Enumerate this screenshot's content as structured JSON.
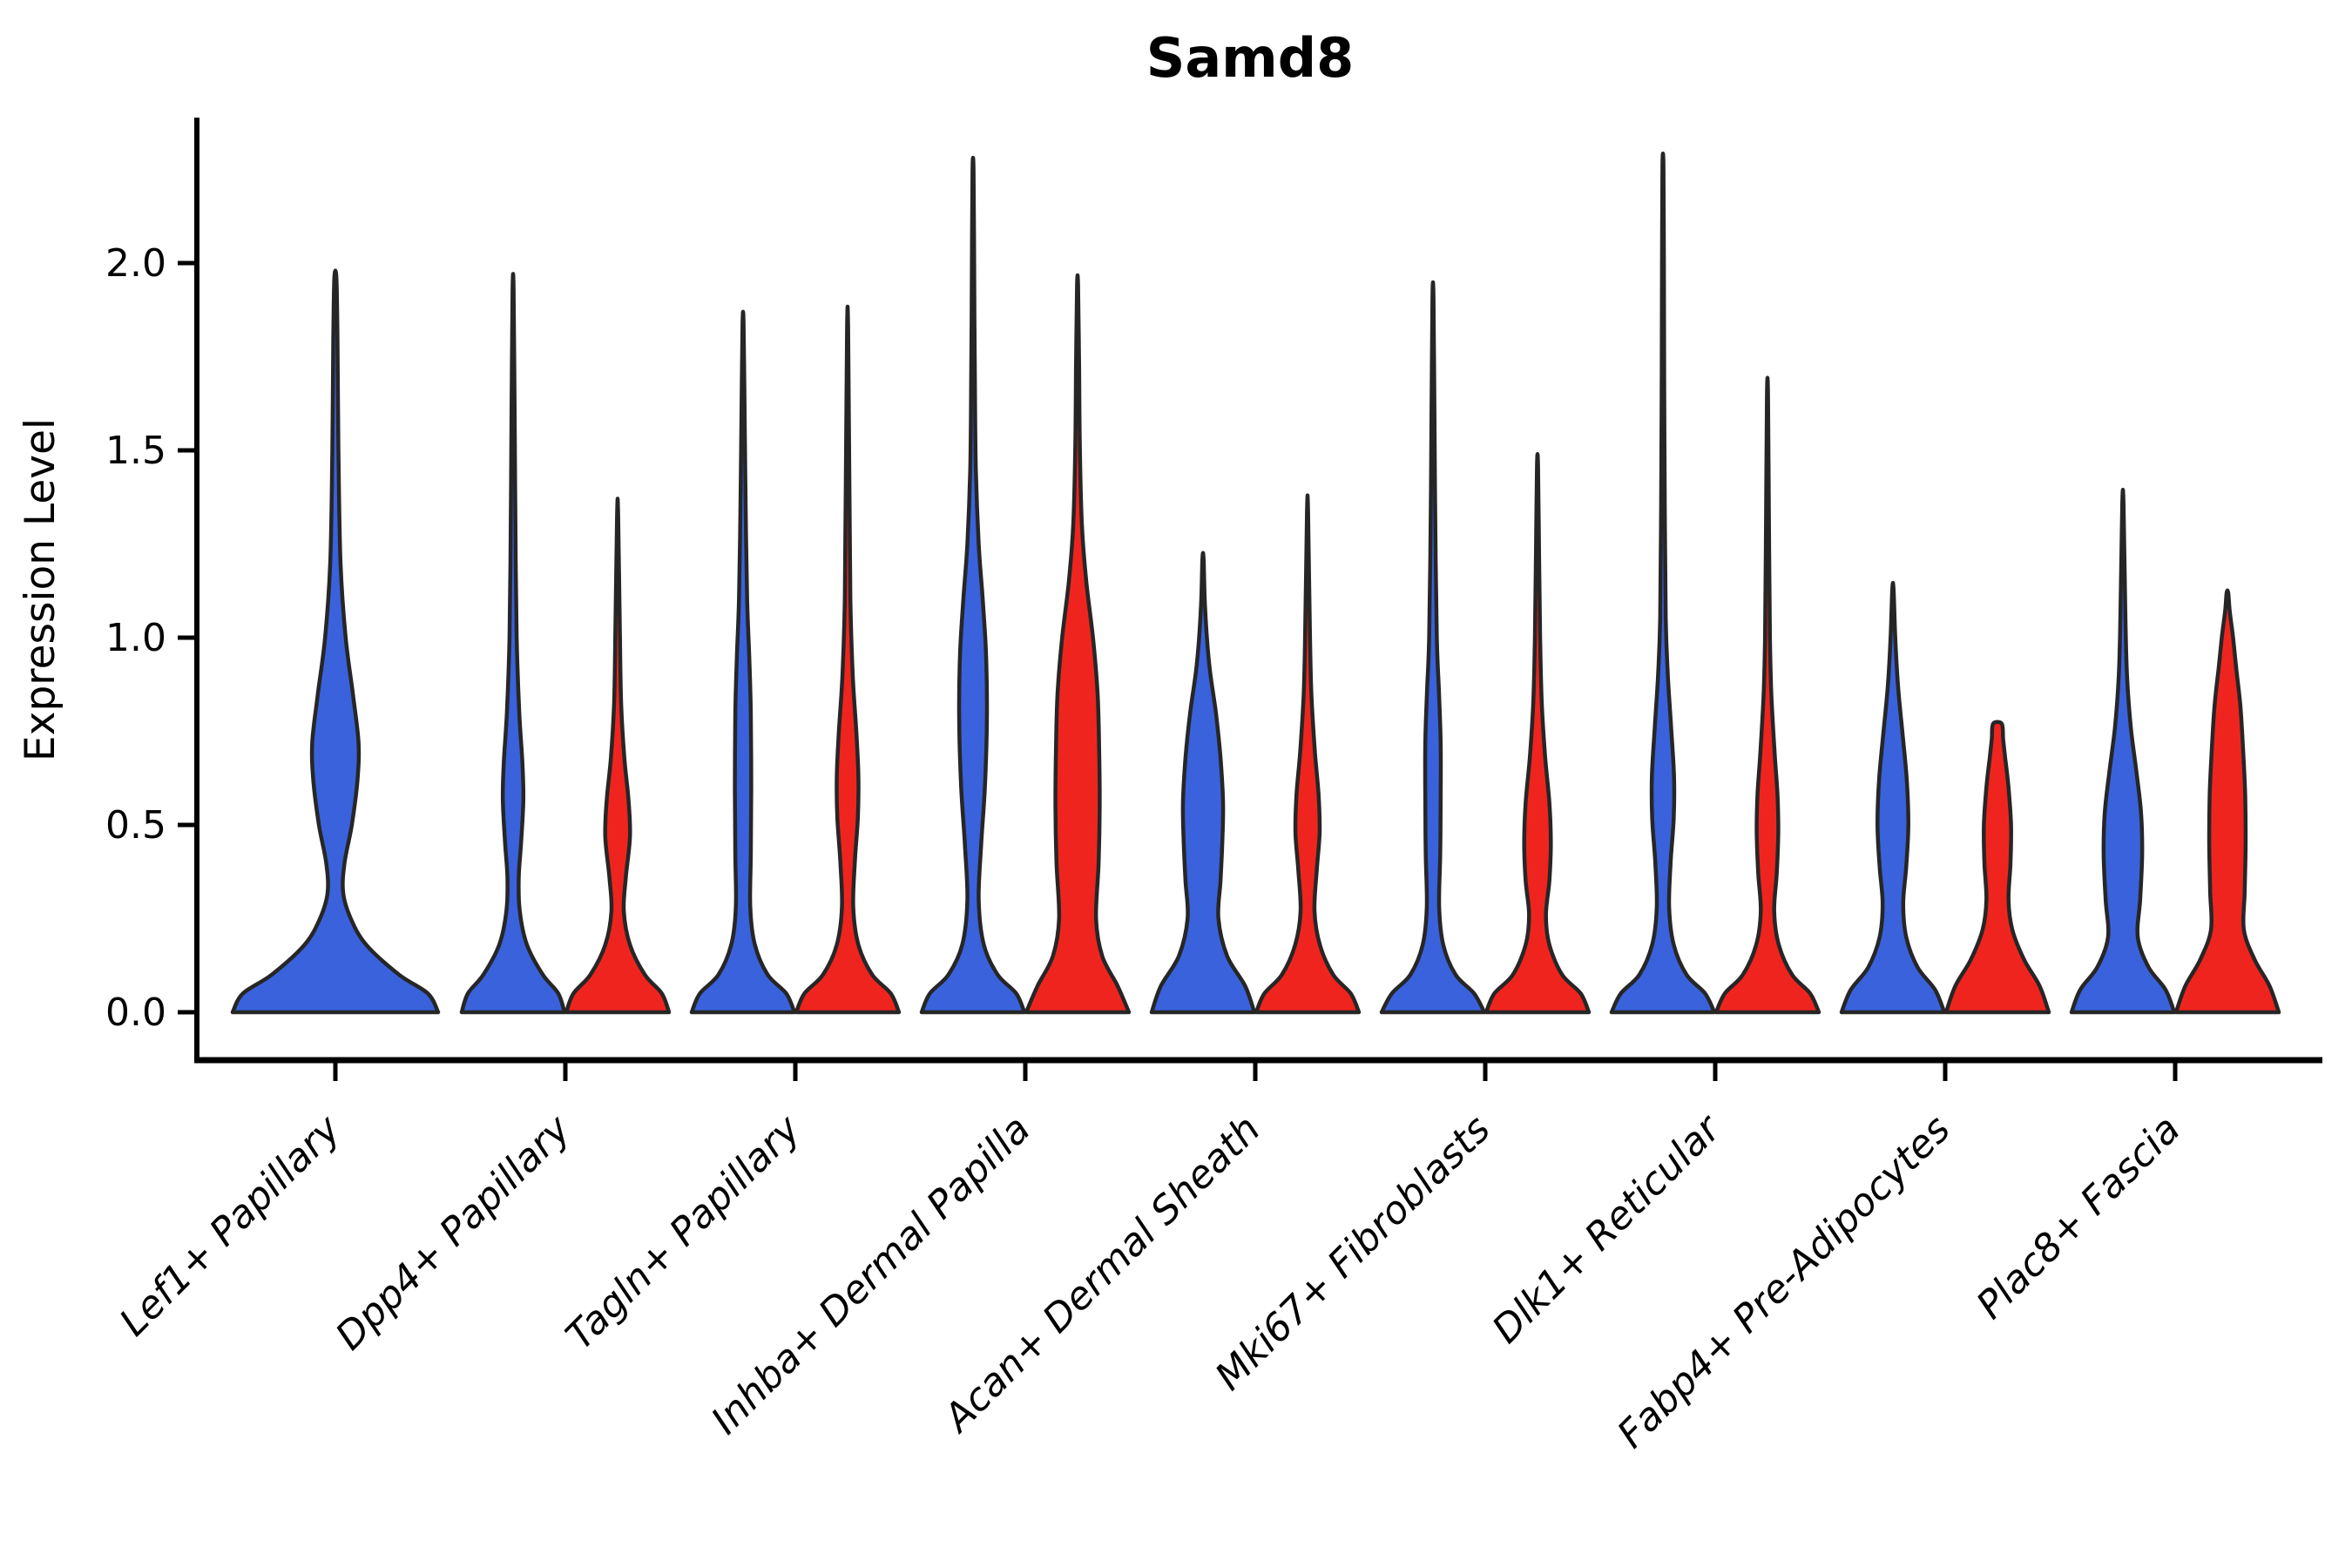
{
  "chart_data": {
    "type": "violin",
    "title": "Samd8",
    "ylabel": "Expression Level",
    "xlabel": "",
    "grid": false,
    "legend": "none",
    "ylim": [
      -0.13,
      2.38
    ],
    "yaxis": {
      "tick_values": [
        0.0,
        0.5,
        1.0,
        1.5,
        2.0
      ],
      "tick_labels": [
        "0.0",
        "0.5",
        "1.0",
        "1.5",
        "2.0"
      ]
    },
    "categories": [
      "Lef1+ Papillary",
      "Dpp4+ Papillary",
      "Tagln+ Papillary",
      "Inhba+ Dermal Papilla",
      "Acan+ Dermal Sheath",
      "Mki67+ Fibroblasts",
      "Dlk1+ Reticular",
      "Fabp4+ Pre-Adipocytes",
      "Plac8+ Fascia"
    ],
    "series": [
      {
        "name": "blue",
        "color": "#3A62DC"
      },
      {
        "name": "red",
        "color": "#F0241E"
      }
    ],
    "outline_color": "#262626",
    "axis_color": "#000000",
    "background_color": "#ffffff",
    "violins": [
      {
        "category": "Lef1+ Papillary",
        "series": "blue",
        "max_expression": 1.96,
        "width_scale": 2.0,
        "profile": [
          [
            0,
            1
          ],
          [
            0.05,
            0.9
          ],
          [
            0.1,
            0.62
          ],
          [
            0.18,
            0.3
          ],
          [
            0.25,
            0.15
          ],
          [
            0.32,
            0.075
          ],
          [
            0.4,
            0.09
          ],
          [
            0.5,
            0.16
          ],
          [
            0.62,
            0.215
          ],
          [
            0.72,
            0.225
          ],
          [
            0.85,
            0.17
          ],
          [
            1.0,
            0.1
          ],
          [
            1.2,
            0.05
          ],
          [
            1.5,
            0.03
          ],
          [
            1.8,
            0.02
          ],
          [
            1.96,
            0.01
          ]
        ]
      },
      {
        "category": "Dpp4+ Papillary",
        "series": "blue",
        "max_expression": 1.93,
        "width_scale": 1.0,
        "profile": [
          [
            0,
            1
          ],
          [
            0.05,
            0.88
          ],
          [
            0.1,
            0.58
          ],
          [
            0.18,
            0.27
          ],
          [
            0.27,
            0.13
          ],
          [
            0.36,
            0.11
          ],
          [
            0.46,
            0.16
          ],
          [
            0.57,
            0.2
          ],
          [
            0.67,
            0.18
          ],
          [
            0.8,
            0.12
          ],
          [
            1.0,
            0.07
          ],
          [
            1.3,
            0.045
          ],
          [
            1.6,
            0.03
          ],
          [
            1.93,
            0.01
          ]
        ]
      },
      {
        "category": "Dpp4+ Papillary",
        "series": "red",
        "max_expression": 1.33,
        "width_scale": 1.0,
        "profile": [
          [
            0,
            1
          ],
          [
            0.05,
            0.86
          ],
          [
            0.1,
            0.53
          ],
          [
            0.18,
            0.24
          ],
          [
            0.27,
            0.12
          ],
          [
            0.36,
            0.16
          ],
          [
            0.47,
            0.24
          ],
          [
            0.57,
            0.21
          ],
          [
            0.68,
            0.13
          ],
          [
            0.82,
            0.07
          ],
          [
            1.0,
            0.045
          ],
          [
            1.33,
            0.01
          ]
        ]
      },
      {
        "category": "Tagln+ Papillary",
        "series": "blue",
        "max_expression": 1.84,
        "width_scale": 1.0,
        "profile": [
          [
            0,
            1
          ],
          [
            0.05,
            0.84
          ],
          [
            0.1,
            0.48
          ],
          [
            0.18,
            0.23
          ],
          [
            0.28,
            0.14
          ],
          [
            0.42,
            0.15
          ],
          [
            0.6,
            0.16
          ],
          [
            0.8,
            0.15
          ],
          [
            0.95,
            0.12
          ],
          [
            1.1,
            0.08
          ],
          [
            1.35,
            0.05
          ],
          [
            1.6,
            0.03
          ],
          [
            1.84,
            0.01
          ]
        ]
      },
      {
        "category": "Tagln+ Papillary",
        "series": "red",
        "max_expression": 1.83,
        "width_scale": 1.0,
        "profile": [
          [
            0,
            1
          ],
          [
            0.05,
            0.84
          ],
          [
            0.1,
            0.48
          ],
          [
            0.18,
            0.21
          ],
          [
            0.28,
            0.11
          ],
          [
            0.4,
            0.14
          ],
          [
            0.52,
            0.2
          ],
          [
            0.63,
            0.21
          ],
          [
            0.75,
            0.17
          ],
          [
            0.9,
            0.1
          ],
          [
            1.1,
            0.055
          ],
          [
            1.4,
            0.035
          ],
          [
            1.83,
            0.01
          ]
        ]
      },
      {
        "category": "Inhba+ Dermal Papilla",
        "series": "blue",
        "max_expression": 2.25,
        "width_scale": 1.0,
        "profile": [
          [
            0,
            1
          ],
          [
            0.05,
            0.84
          ],
          [
            0.1,
            0.48
          ],
          [
            0.18,
            0.21
          ],
          [
            0.3,
            0.11
          ],
          [
            0.45,
            0.16
          ],
          [
            0.6,
            0.23
          ],
          [
            0.78,
            0.27
          ],
          [
            0.95,
            0.255
          ],
          [
            1.1,
            0.19
          ],
          [
            1.25,
            0.11
          ],
          [
            1.45,
            0.055
          ],
          [
            1.7,
            0.035
          ],
          [
            2.0,
            0.022
          ],
          [
            2.25,
            0.01
          ]
        ]
      },
      {
        "category": "Inhba+ Dermal Papilla",
        "series": "red",
        "max_expression": 1.94,
        "width_scale": 1.0,
        "profile": [
          [
            0,
            1
          ],
          [
            0.07,
            0.78
          ],
          [
            0.15,
            0.48
          ],
          [
            0.25,
            0.36
          ],
          [
            0.4,
            0.41
          ],
          [
            0.55,
            0.43
          ],
          [
            0.7,
            0.42
          ],
          [
            0.85,
            0.39
          ],
          [
            1.0,
            0.3
          ],
          [
            1.15,
            0.17
          ],
          [
            1.3,
            0.085
          ],
          [
            1.5,
            0.045
          ],
          [
            1.72,
            0.03
          ],
          [
            1.94,
            0.01
          ]
        ]
      },
      {
        "category": "Acan+ Dermal Sheath",
        "series": "blue",
        "max_expression": 1.21,
        "width_scale": 1.0,
        "profile": [
          [
            0,
            1
          ],
          [
            0.07,
            0.82
          ],
          [
            0.15,
            0.47
          ],
          [
            0.25,
            0.3
          ],
          [
            0.35,
            0.34
          ],
          [
            0.45,
            0.375
          ],
          [
            0.56,
            0.39
          ],
          [
            0.68,
            0.34
          ],
          [
            0.8,
            0.25
          ],
          [
            0.93,
            0.12
          ],
          [
            1.08,
            0.04
          ],
          [
            1.21,
            0.012
          ]
        ]
      },
      {
        "category": "Acan+ Dermal Sheath",
        "series": "red",
        "max_expression": 1.34,
        "width_scale": 1.0,
        "profile": [
          [
            0,
            1
          ],
          [
            0.05,
            0.84
          ],
          [
            0.1,
            0.5
          ],
          [
            0.18,
            0.24
          ],
          [
            0.27,
            0.135
          ],
          [
            0.38,
            0.18
          ],
          [
            0.48,
            0.235
          ],
          [
            0.58,
            0.215
          ],
          [
            0.7,
            0.14
          ],
          [
            0.85,
            0.075
          ],
          [
            1.02,
            0.045
          ],
          [
            1.34,
            0.01
          ]
        ]
      },
      {
        "category": "Mki67+ Fibroblasts",
        "series": "blue",
        "max_expression": 1.91,
        "width_scale": 1.0,
        "profile": [
          [
            0,
            1
          ],
          [
            0.05,
            0.8
          ],
          [
            0.1,
            0.44
          ],
          [
            0.18,
            0.2
          ],
          [
            0.28,
            0.12
          ],
          [
            0.42,
            0.14
          ],
          [
            0.56,
            0.15
          ],
          [
            0.72,
            0.15
          ],
          [
            0.86,
            0.115
          ],
          [
            1.0,
            0.075
          ],
          [
            1.3,
            0.045
          ],
          [
            1.6,
            0.028
          ],
          [
            1.91,
            0.01
          ]
        ]
      },
      {
        "category": "Mki67+ Fibroblasts",
        "series": "red",
        "max_expression": 1.46,
        "width_scale": 1.0,
        "profile": [
          [
            0,
            1
          ],
          [
            0.05,
            0.84
          ],
          [
            0.1,
            0.48
          ],
          [
            0.18,
            0.23
          ],
          [
            0.26,
            0.165
          ],
          [
            0.35,
            0.23
          ],
          [
            0.45,
            0.26
          ],
          [
            0.56,
            0.23
          ],
          [
            0.68,
            0.15
          ],
          [
            0.82,
            0.085
          ],
          [
            1.0,
            0.05
          ],
          [
            1.22,
            0.03
          ],
          [
            1.46,
            0.01
          ]
        ]
      },
      {
        "category": "Dlk1+ Reticular",
        "series": "blue",
        "max_expression": 2.26,
        "width_scale": 1.0,
        "profile": [
          [
            0,
            1
          ],
          [
            0.05,
            0.82
          ],
          [
            0.1,
            0.46
          ],
          [
            0.18,
            0.21
          ],
          [
            0.28,
            0.12
          ],
          [
            0.4,
            0.15
          ],
          [
            0.52,
            0.21
          ],
          [
            0.63,
            0.215
          ],
          [
            0.76,
            0.16
          ],
          [
            0.9,
            0.095
          ],
          [
            1.05,
            0.055
          ],
          [
            1.35,
            0.035
          ],
          [
            1.7,
            0.024
          ],
          [
            2.0,
            0.018
          ],
          [
            2.26,
            0.01
          ]
        ]
      },
      {
        "category": "Dlk1+ Reticular",
        "series": "red",
        "max_expression": 1.65,
        "width_scale": 1.0,
        "profile": [
          [
            0,
            1
          ],
          [
            0.05,
            0.83
          ],
          [
            0.1,
            0.48
          ],
          [
            0.18,
            0.22
          ],
          [
            0.27,
            0.13
          ],
          [
            0.37,
            0.18
          ],
          [
            0.48,
            0.21
          ],
          [
            0.58,
            0.195
          ],
          [
            0.7,
            0.135
          ],
          [
            0.85,
            0.075
          ],
          [
            1.0,
            0.048
          ],
          [
            1.3,
            0.028
          ],
          [
            1.65,
            0.01
          ]
        ]
      },
      {
        "category": "Fabp4+ Pre-Adipocytes",
        "series": "blue",
        "max_expression": 1.13,
        "width_scale": 1.0,
        "profile": [
          [
            0,
            1
          ],
          [
            0.06,
            0.82
          ],
          [
            0.12,
            0.48
          ],
          [
            0.2,
            0.26
          ],
          [
            0.29,
            0.2
          ],
          [
            0.39,
            0.26
          ],
          [
            0.5,
            0.3
          ],
          [
            0.62,
            0.27
          ],
          [
            0.74,
            0.19
          ],
          [
            0.87,
            0.1
          ],
          [
            1.0,
            0.045
          ],
          [
            1.13,
            0.012
          ]
        ]
      },
      {
        "category": "Fabp4+ Pre-Adipocytes",
        "series": "red",
        "max_expression": 0.77,
        "width_scale": 1.0,
        "profile": [
          [
            0,
            1
          ],
          [
            0.07,
            0.82
          ],
          [
            0.14,
            0.52
          ],
          [
            0.22,
            0.29
          ],
          [
            0.3,
            0.215
          ],
          [
            0.4,
            0.255
          ],
          [
            0.5,
            0.265
          ],
          [
            0.6,
            0.215
          ],
          [
            0.68,
            0.15
          ],
          [
            0.73,
            0.11
          ],
          [
            0.77,
            0.085
          ]
        ]
      },
      {
        "category": "Plac8+ Fascia",
        "series": "blue",
        "max_expression": 1.36,
        "width_scale": 1.0,
        "profile": [
          [
            0,
            1
          ],
          [
            0.06,
            0.83
          ],
          [
            0.12,
            0.5
          ],
          [
            0.2,
            0.29
          ],
          [
            0.3,
            0.335
          ],
          [
            0.42,
            0.375
          ],
          [
            0.53,
            0.355
          ],
          [
            0.64,
            0.265
          ],
          [
            0.76,
            0.155
          ],
          [
            0.9,
            0.08
          ],
          [
            1.08,
            0.045
          ],
          [
            1.36,
            0.012
          ]
        ]
      },
      {
        "category": "Plac8+ Fascia",
        "series": "red",
        "max_expression": 1.12,
        "width_scale": 1.0,
        "profile": [
          [
            0,
            1
          ],
          [
            0.07,
            0.82
          ],
          [
            0.14,
            0.53
          ],
          [
            0.22,
            0.32
          ],
          [
            0.32,
            0.335
          ],
          [
            0.45,
            0.355
          ],
          [
            0.58,
            0.345
          ],
          [
            0.7,
            0.305
          ],
          [
            0.82,
            0.25
          ],
          [
            0.92,
            0.17
          ],
          [
            1.0,
            0.11
          ],
          [
            1.07,
            0.045
          ],
          [
            1.12,
            0.015
          ]
        ]
      }
    ]
  }
}
